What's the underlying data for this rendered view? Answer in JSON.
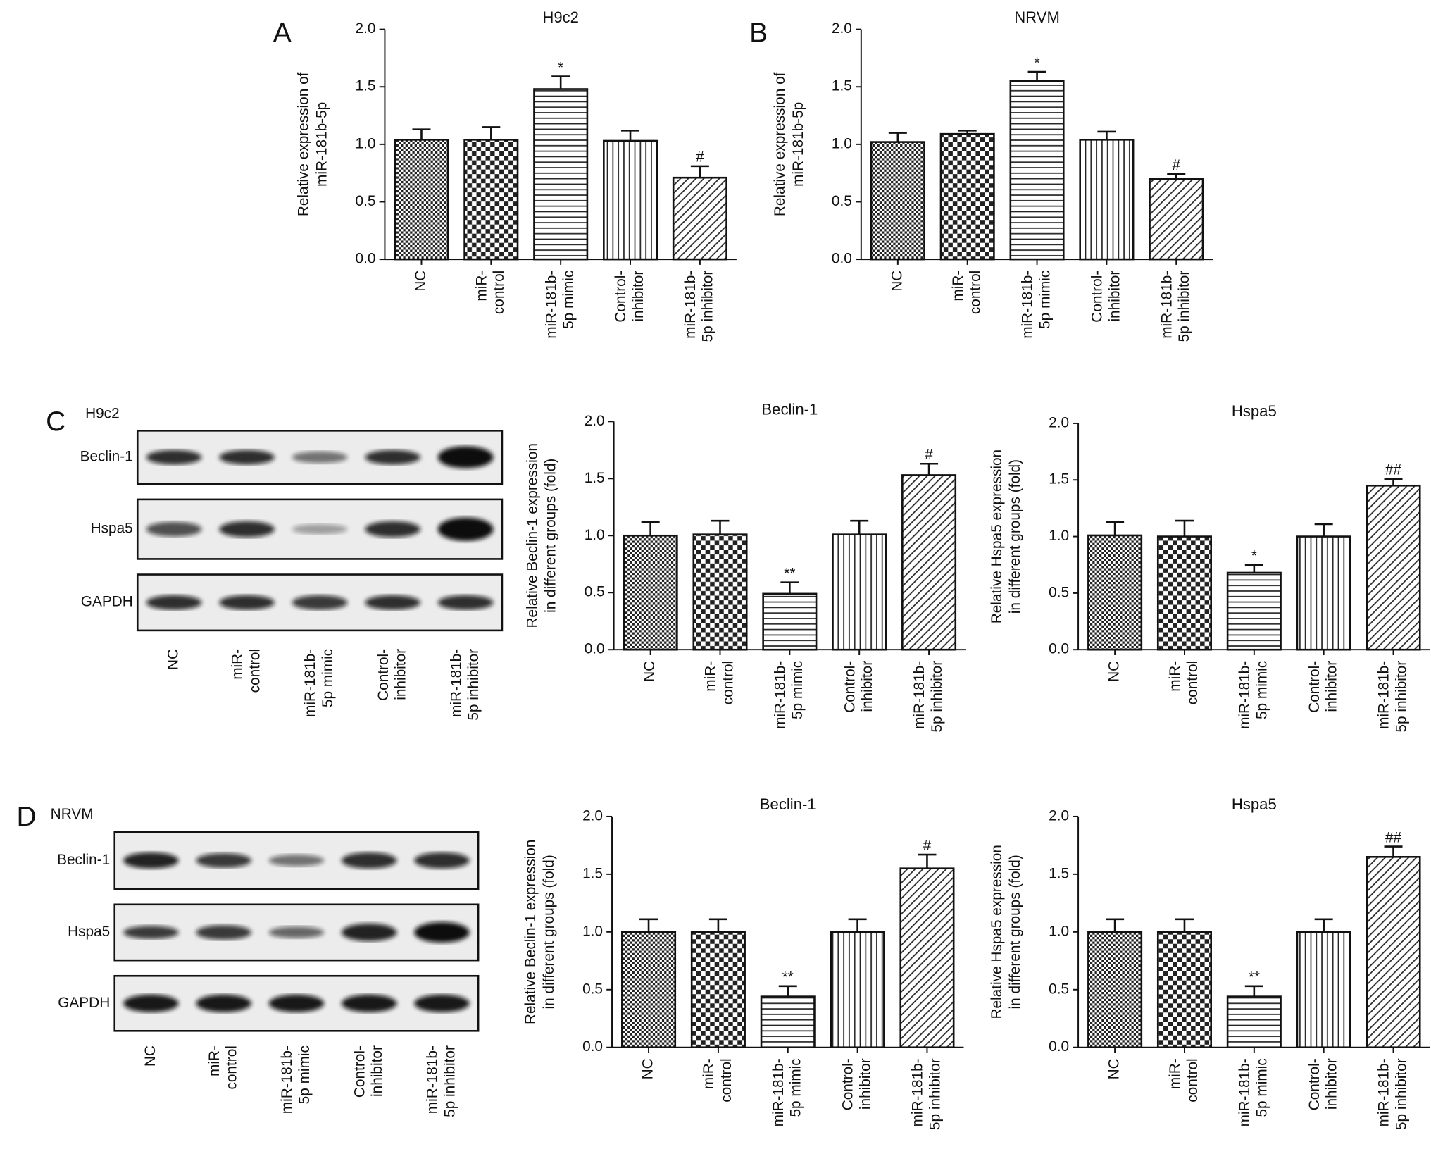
{
  "chart_data": [
    {
      "type": "bar",
      "panel": "A",
      "title": "H9c2",
      "ylabel": [
        "Relative expression of",
        "miR-181b-5p"
      ],
      "categories": [
        [
          "NC"
        ],
        [
          "miR-",
          "control"
        ],
        [
          "miR-181b-",
          "5p mimic"
        ],
        [
          "Control-",
          "inhibitor"
        ],
        [
          "miR-181b-",
          "5p inhibitor"
        ]
      ],
      "values": [
        1.04,
        1.04,
        1.48,
        1.03,
        0.71
      ],
      "errors": [
        0.09,
        0.11,
        0.11,
        0.09,
        0.1
      ],
      "significance": [
        null,
        null,
        "*",
        null,
        "#"
      ],
      "patterns": [
        "dense-check",
        "checker",
        "horizontal",
        "vertical",
        "diagonal"
      ],
      "ylim": [
        0,
        2
      ],
      "yticks": [
        {
          "value": 0,
          "label": "0.0"
        },
        {
          "value": 0.5,
          "label": "0.5"
        },
        {
          "value": 1,
          "label": "1.0"
        },
        {
          "value": 1.5,
          "label": "1.5"
        },
        {
          "value": 2,
          "label": "2.0"
        }
      ]
    },
    {
      "type": "bar",
      "panel": "B",
      "title": "NRVM",
      "ylabel": [
        "Relative expression of",
        "miR-181b-5p"
      ],
      "categories": [
        [
          "NC"
        ],
        [
          "miR-",
          "control"
        ],
        [
          "miR-181b-",
          "5p mimic"
        ],
        [
          "Control-",
          "inhibitor"
        ],
        [
          "miR-181b-",
          "5p inhibitor"
        ]
      ],
      "values": [
        1.02,
        1.09,
        1.55,
        1.04,
        0.7
      ],
      "errors": [
        0.08,
        0.03,
        0.08,
        0.07,
        0.04
      ],
      "significance": [
        null,
        null,
        "*",
        null,
        "#"
      ],
      "patterns": [
        "dense-check",
        "checker",
        "horizontal",
        "vertical",
        "diagonal"
      ],
      "ylim": [
        0,
        2
      ],
      "yticks": [
        {
          "value": 0,
          "label": "0.0"
        },
        {
          "value": 0.5,
          "label": "0.5"
        },
        {
          "value": 1,
          "label": "1.0"
        },
        {
          "value": 1.5,
          "label": "1.5"
        },
        {
          "value": 2,
          "label": "2.0"
        }
      ]
    },
    {
      "type": "bar",
      "title": "Beclin-1",
      "ylabel": [
        "Relative Beclin-1 expression",
        "in different groups (fold)"
      ],
      "categories": [
        [
          "NC"
        ],
        [
          "miR-",
          "control"
        ],
        [
          "miR-181b-",
          "5p mimic"
        ],
        [
          "Control-",
          "inhibitor"
        ],
        [
          "miR-181b-",
          "5p inhibitor"
        ]
      ],
      "values": [
        1.0,
        1.01,
        0.49,
        1.01,
        1.53
      ],
      "errors": [
        0.12,
        0.12,
        0.1,
        0.12,
        0.1
      ],
      "significance": [
        null,
        null,
        "**",
        null,
        "#"
      ],
      "patterns": [
        "dense-check",
        "checker",
        "horizontal",
        "vertical",
        "diagonal"
      ],
      "ylim": [
        0,
        2
      ],
      "yticks": [
        {
          "value": 0,
          "label": "0.0"
        },
        {
          "value": 0.5,
          "label": "0.5"
        },
        {
          "value": 1,
          "label": "1.0"
        },
        {
          "value": 1.5,
          "label": "1.5"
        },
        {
          "value": 2,
          "label": "2.0"
        }
      ]
    },
    {
      "type": "bar",
      "title": "Hspa5",
      "ylabel": [
        "Relative Hspa5 expression",
        "in different groups (fold)"
      ],
      "categories": [
        [
          "NC"
        ],
        [
          "miR-",
          "control"
        ],
        [
          "miR-181b-",
          "5p mimic"
        ],
        [
          "Control-",
          "inhibitor"
        ],
        [
          "miR-181b-",
          "5p inhibitor"
        ]
      ],
      "values": [
        1.01,
        1.0,
        0.68,
        1.0,
        1.45
      ],
      "errors": [
        0.12,
        0.14,
        0.07,
        0.11,
        0.06
      ],
      "significance": [
        null,
        null,
        "*",
        null,
        "##"
      ],
      "patterns": [
        "dense-check",
        "checker",
        "horizontal",
        "vertical",
        "diagonal"
      ],
      "ylim": [
        0,
        2
      ],
      "yticks": [
        {
          "value": 0,
          "label": "0.0"
        },
        {
          "value": 0.5,
          "label": "0.5"
        },
        {
          "value": 1,
          "label": "1.0"
        },
        {
          "value": 1.5,
          "label": "1.5"
        },
        {
          "value": 2,
          "label": "2.0"
        }
      ]
    },
    {
      "type": "bar",
      "title": "Beclin-1",
      "ylabel": [
        "Relative Beclin-1 expression",
        "in different groups (fold)"
      ],
      "categories": [
        [
          "NC"
        ],
        [
          "miR-",
          "control"
        ],
        [
          "miR-181b-",
          "5p mimic"
        ],
        [
          "Control-",
          "inhibitor"
        ],
        [
          "miR-181b-",
          "5p inhibitor"
        ]
      ],
      "values": [
        1.0,
        1.0,
        0.44,
        1.0,
        1.55
      ],
      "errors": [
        0.11,
        0.11,
        0.09,
        0.11,
        0.12
      ],
      "significance": [
        null,
        null,
        "**",
        null,
        "#"
      ],
      "patterns": [
        "dense-check",
        "checker",
        "horizontal",
        "vertical",
        "diagonal"
      ],
      "ylim": [
        0,
        2
      ],
      "yticks": [
        {
          "value": 0,
          "label": "0.0"
        },
        {
          "value": 0.5,
          "label": "0.5"
        },
        {
          "value": 1,
          "label": "1.0"
        },
        {
          "value": 1.5,
          "label": "1.5"
        },
        {
          "value": 2,
          "label": "2.0"
        }
      ]
    },
    {
      "type": "bar",
      "title": "Hspa5",
      "ylabel": [
        "Relative Hspa5 expression",
        "in different groups (fold)"
      ],
      "categories": [
        [
          "NC"
        ],
        [
          "miR-",
          "control"
        ],
        [
          "miR-181b-",
          "5p mimic"
        ],
        [
          "Control-",
          "inhibitor"
        ],
        [
          "miR-181b-",
          "5p inhibitor"
        ]
      ],
      "values": [
        1.0,
        1.0,
        0.44,
        1.0,
        1.65
      ],
      "errors": [
        0.11,
        0.11,
        0.09,
        0.11,
        0.09
      ],
      "significance": [
        null,
        null,
        "**",
        null,
        "##"
      ],
      "patterns": [
        "dense-check",
        "checker",
        "horizontal",
        "vertical",
        "diagonal"
      ],
      "ylim": [
        0,
        2
      ],
      "yticks": [
        {
          "value": 0,
          "label": "0.0"
        },
        {
          "value": 0.5,
          "label": "0.5"
        },
        {
          "value": 1,
          "label": "1.0"
        },
        {
          "value": 1.5,
          "label": "1.5"
        },
        {
          "value": 2,
          "label": "2.0"
        }
      ]
    }
  ],
  "blots": [
    {
      "panel": "C",
      "cell": "H9c2",
      "proteins": [
        "Beclin-1",
        "Hspa5",
        "GAPDH"
      ],
      "lanes": [
        [
          "NC"
        ],
        [
          "miR-",
          "control"
        ],
        [
          "miR-181b-",
          "5p mimic"
        ],
        [
          "Control-",
          "inhibitor"
        ],
        [
          "miR-181b-",
          "5p inhibitor"
        ]
      ]
    },
    {
      "panel": "D",
      "cell": "NRVM",
      "proteins": [
        "Beclin-1",
        "Hspa5",
        "GAPDH"
      ],
      "lanes": [
        [
          "NC"
        ],
        [
          "miR-",
          "control"
        ],
        [
          "miR-181b-",
          "5p mimic"
        ],
        [
          "Control-",
          "inhibitor"
        ],
        [
          "miR-181b-",
          "5p inhibitor"
        ]
      ]
    }
  ]
}
